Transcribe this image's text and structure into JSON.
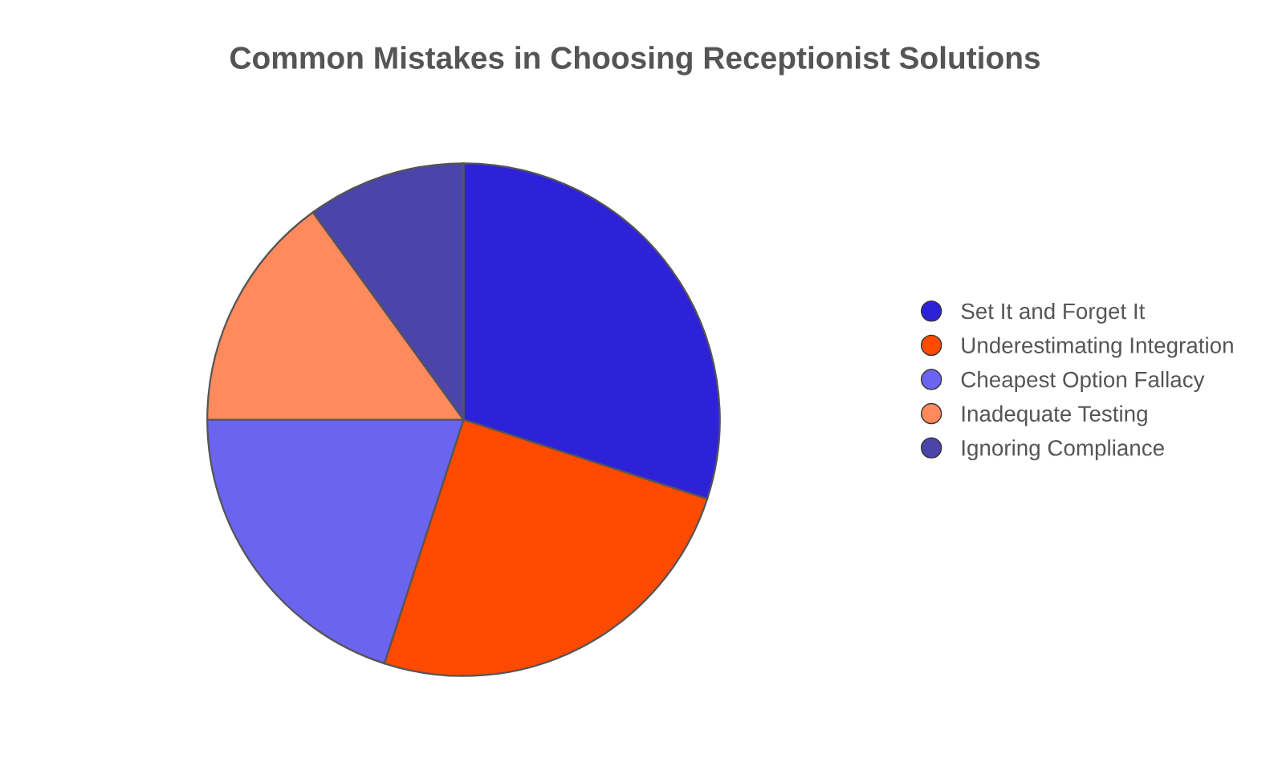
{
  "chart_data": {
    "type": "pie",
    "title": "Common Mistakes in Choosing Receptionist Solutions",
    "categories": [
      "Set It and Forget It",
      "Underestimating Integration",
      "Cheapest Option Fallacy",
      "Inadequate Testing",
      "Ignoring Compliance"
    ],
    "values": [
      30,
      25,
      20,
      15,
      10
    ],
    "colors": [
      "#2e22d9",
      "#ff4a00",
      "#6a64ee",
      "#ff8a5c",
      "#4b44aa"
    ],
    "legend": "right"
  }
}
